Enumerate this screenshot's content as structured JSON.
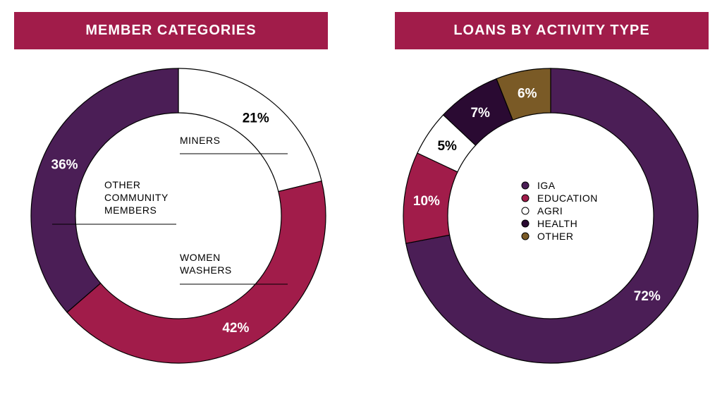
{
  "left_panel": {
    "title": "MEMBER CATEGORIES"
  },
  "right_panel": {
    "title": "LOANS BY ACTIVITY TYPE"
  },
  "colors": {
    "header": "#a11c4a",
    "purple": "#4b1e56",
    "crimson": "#a11c4a",
    "white": "#ffffff",
    "dark_purple": "#2a0a32",
    "brown": "#7a5a26"
  },
  "chart_data": [
    {
      "type": "pie",
      "title": "MEMBER CATEGORIES",
      "slices": [
        {
          "label": "MINERS",
          "value": 21,
          "value_label": "21%",
          "color": "#ffffff"
        },
        {
          "label": "WOMEN WASHERS",
          "value": 42,
          "value_label": "42%",
          "color": "#a11c4a"
        },
        {
          "label": "OTHER COMMUNITY MEMBERS",
          "value": 36,
          "value_label": "36%",
          "color": "#4b1e56"
        }
      ],
      "category_labels": {
        "miners": [
          "MINERS"
        ],
        "women_washers": [
          "WOMEN",
          "WASHERS"
        ],
        "other": [
          "OTHER",
          "COMMUNITY",
          "MEMBERS"
        ]
      }
    },
    {
      "type": "pie",
      "title": "LOANS BY ACTIVITY TYPE",
      "slices": [
        {
          "label": "IGA",
          "value": 72,
          "value_label": "72%",
          "color": "#4b1e56"
        },
        {
          "label": "EDUCATION",
          "value": 10,
          "value_label": "10%",
          "color": "#a11c4a"
        },
        {
          "label": "AGRI",
          "value": 5,
          "value_label": "5%",
          "color": "#ffffff"
        },
        {
          "label": "HEALTH",
          "value": 7,
          "value_label": "7%",
          "color": "#2a0a32"
        },
        {
          "label": "OTHER",
          "value": 6,
          "value_label": "6%",
          "color": "#7a5a26"
        }
      ],
      "legend": [
        "IGA",
        "EDUCATION",
        "AGRI",
        "HEALTH",
        "OTHER"
      ]
    }
  ]
}
